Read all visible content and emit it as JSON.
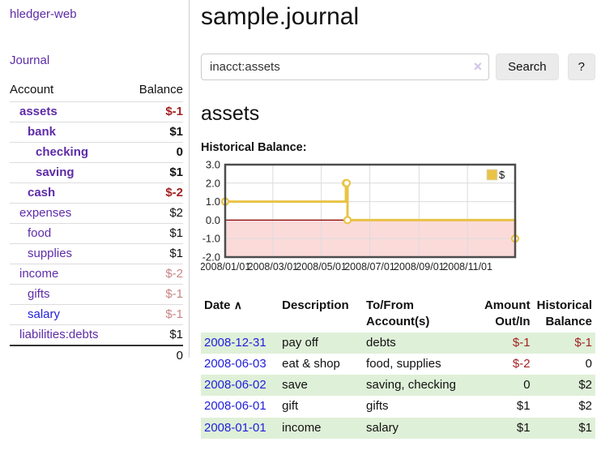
{
  "app": {
    "brand": "hledger-web"
  },
  "sidebar": {
    "journal_link": "Journal",
    "accounts_table": {
      "account_header": "Account",
      "balance_header": "Balance",
      "rows": [
        {
          "name": "assets",
          "balance": "$-1",
          "indent": 1,
          "bold": true,
          "balance_tone": "neg-strong",
          "link_tone": "purple"
        },
        {
          "name": "bank",
          "balance": "$1",
          "indent": 2,
          "bold": true,
          "balance_tone": "pos",
          "link_tone": "purple"
        },
        {
          "name": "checking",
          "balance": "0",
          "indent": 3,
          "bold": true,
          "balance_tone": "pos",
          "link_tone": "purple"
        },
        {
          "name": "saving",
          "balance": "$1",
          "indent": 3,
          "bold": true,
          "balance_tone": "pos",
          "link_tone": "purple"
        },
        {
          "name": "cash",
          "balance": "$-2",
          "indent": 2,
          "bold": true,
          "balance_tone": "neg-strong",
          "link_tone": "purple"
        },
        {
          "name": "expenses",
          "balance": "$2",
          "indent": 1,
          "bold": false,
          "balance_tone": "pos",
          "link_tone": "purple"
        },
        {
          "name": "food",
          "balance": "$1",
          "indent": 2,
          "bold": false,
          "balance_tone": "pos",
          "link_tone": "purple"
        },
        {
          "name": "supplies",
          "balance": "$1",
          "indent": 2,
          "bold": false,
          "balance_tone": "pos",
          "link_tone": "purple"
        },
        {
          "name": "income",
          "balance": "$-2",
          "indent": 1,
          "bold": false,
          "balance_tone": "neg-soft",
          "link_tone": "purple"
        },
        {
          "name": "gifts",
          "balance": "$-1",
          "indent": 2,
          "bold": false,
          "balance_tone": "neg-soft",
          "link_tone": "purple"
        },
        {
          "name": "salary",
          "balance": "$-1",
          "indent": 2,
          "bold": false,
          "balance_tone": "neg-soft",
          "link_tone": "blue"
        },
        {
          "name": "liabilities:debts",
          "balance": "$1",
          "indent": 1,
          "bold": false,
          "balance_tone": "pos",
          "link_tone": "purple"
        }
      ],
      "total": "0"
    }
  },
  "main": {
    "title": "sample.journal",
    "search": {
      "value": "inacct:assets",
      "clear_icon": "×",
      "search_button": "Search",
      "help_button": "?"
    },
    "account_heading": "assets",
    "chart_title": "Historical Balance:"
  },
  "chart_data": {
    "type": "line",
    "step": "after",
    "title": "Historical Balance:",
    "ylim": [
      -2,
      3
    ],
    "yticks": [
      3.0,
      2.0,
      1.0,
      0.0,
      -1.0,
      -2.0
    ],
    "xlim_days": [
      0,
      365
    ],
    "xticks": [
      {
        "label": "2008/01/01",
        "day": 0
      },
      {
        "label": "2008/03/01",
        "day": 60
      },
      {
        "label": "2008/05/01",
        "day": 121
      },
      {
        "label": "2008/07/01",
        "day": 182
      },
      {
        "label": "2008/09/01",
        "day": 244
      },
      {
        "label": "2008/11/01",
        "day": 305
      }
    ],
    "series": [
      {
        "name": "$",
        "color": "#e9c345",
        "points": [
          {
            "date": "2008-01-01",
            "day": 0,
            "value": 1
          },
          {
            "date": "2008-06-01",
            "day": 152,
            "value": 2
          },
          {
            "date": "2008-06-02",
            "day": 153,
            "value": 2
          },
          {
            "date": "2008-06-03",
            "day": 154,
            "value": 0
          },
          {
            "date": "2008-12-31",
            "day": 365,
            "value": -1
          }
        ]
      }
    ],
    "negative_fill": "#fbdada",
    "zero_line_color": "#8b0000",
    "grid": true,
    "legend": {
      "label": "$",
      "position": "top-right"
    }
  },
  "register": {
    "headers": {
      "date": "Date",
      "sort_icon": "∧",
      "description": "Description",
      "accounts_1": "To/From",
      "accounts_2": "Account(s)",
      "amount_1": "Amount",
      "amount_2": "Out/In",
      "balance_1": "Historical",
      "balance_2": "Balance"
    },
    "rows": [
      {
        "date": "2008-12-31",
        "description": "pay off",
        "accounts": "debts",
        "amount": "$-1",
        "amount_tone": "neg",
        "balance": "$-1",
        "balance_tone": "neg"
      },
      {
        "date": "2008-06-03",
        "description": "eat & shop",
        "accounts": "food, supplies",
        "amount": "$-2",
        "amount_tone": "neg",
        "balance": "0",
        "balance_tone": "pos"
      },
      {
        "date": "2008-06-02",
        "description": "save",
        "accounts": "saving, checking",
        "amount": "0",
        "amount_tone": "pos",
        "balance": "$2",
        "balance_tone": "pos"
      },
      {
        "date": "2008-06-01",
        "description": "gift",
        "accounts": "gifts",
        "amount": "$1",
        "amount_tone": "pos",
        "balance": "$2",
        "balance_tone": "pos"
      },
      {
        "date": "2008-01-01",
        "description": "income",
        "accounts": "salary",
        "amount": "$1",
        "amount_tone": "pos",
        "balance": "$1",
        "balance_tone": "pos"
      }
    ]
  },
  "colors": {
    "link_purple": "#5e2ca8",
    "link_blue": "#2121dd",
    "neg_strong": "#a32222",
    "neg_soft": "#c98585",
    "row_green": "#dff0d8",
    "accent_gold": "#e9c345",
    "chart_frame": "#4d4d4d",
    "chart_grid": "#dcdcdc"
  }
}
